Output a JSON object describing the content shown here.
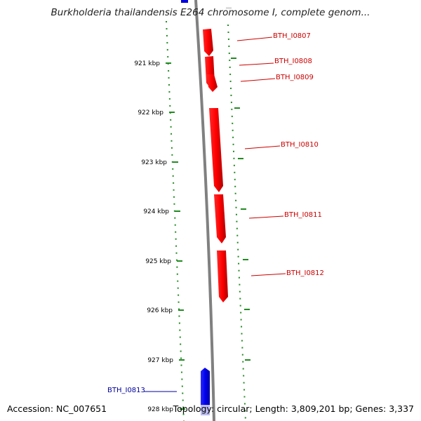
{
  "title": "Burkholderia thailandensis E264 chromosome I, complete genom...",
  "footer": {
    "accession": "Accession: NC_007651",
    "topology": "Topology: circular; Length: 3,809,201 bp; Genes: 3,337"
  },
  "ticks": [
    "921 kbp",
    "922 kbp",
    "923 kbp",
    "924 kbp",
    "925 kbp",
    "926 kbp",
    "927 kbp",
    "928 kbp"
  ],
  "genes_forward": [
    "BTH_I0807",
    "BTH_I0808",
    "BTH_I0809",
    "BTH_I0810",
    "BTH_I0811",
    "BTH_I0812"
  ],
  "genes_reverse": [
    "BTH_I0813"
  ],
  "colors": {
    "forward": "#ff0000",
    "reverse": "#0000dd",
    "backbone": "#808080",
    "ticks": "#228b22"
  }
}
